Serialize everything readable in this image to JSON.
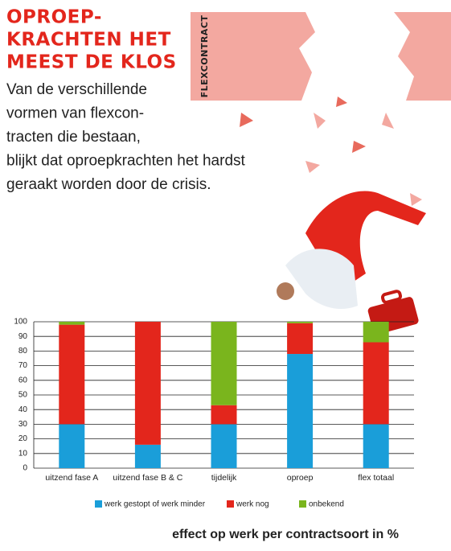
{
  "header": {
    "title_lines": [
      "OPROEP-",
      "KRACHTEN HET",
      "MEEST DE KLOS"
    ],
    "body_lines": [
      "Van de verschillende",
      "vormen van flexcon-",
      "tracten die bestaan,",
      "blijkt dat oproepkrachten het hardst",
      "geraakt worden door de crisis."
    ],
    "tag": "FLEXCONTRACT"
  },
  "chart_data": {
    "type": "bar",
    "stacked": true,
    "categories": [
      "uitzend fase A",
      "uitzend fase B & C",
      "tijdelijk",
      "oproep",
      "flex totaal"
    ],
    "series": [
      {
        "name": "werk gestopt of werk minder",
        "color": "#1a9ed9",
        "values": [
          30,
          16,
          30,
          78,
          30
        ]
      },
      {
        "name": "werk nog",
        "color": "#e3261c",
        "values": [
          68,
          84,
          13,
          21,
          56
        ]
      },
      {
        "name": "onbekend",
        "color": "#7ab51d",
        "values": [
          2,
          0,
          57,
          1,
          14
        ]
      }
    ],
    "ylim": [
      0,
      100
    ],
    "yticks": [
      0,
      10,
      20,
      30,
      40,
      50,
      60,
      70,
      80,
      90,
      100
    ],
    "grid": true,
    "caption": "effect op werk per contractsoort in %"
  }
}
